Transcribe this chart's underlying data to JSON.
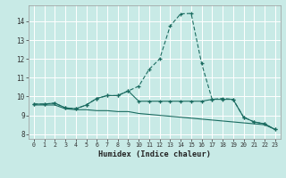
{
  "xlabel": "Humidex (Indice chaleur)",
  "bg_color": "#c8eae6",
  "line_color": "#1a6b60",
  "grid_color": "#b0d8d2",
  "xlim": [
    -0.5,
    23.5
  ],
  "ylim": [
    7.75,
    14.85
  ],
  "xticks": [
    0,
    1,
    2,
    3,
    4,
    5,
    6,
    7,
    8,
    9,
    10,
    11,
    12,
    13,
    14,
    15,
    16,
    17,
    18,
    19,
    20,
    21,
    22,
    23
  ],
  "yticks": [
    8,
    9,
    10,
    11,
    12,
    13,
    14
  ],
  "s1_x": [
    0,
    1,
    2,
    3,
    4,
    5,
    6,
    7,
    8,
    9,
    10,
    11,
    12,
    13,
    14,
    15,
    16,
    17,
    18,
    19,
    20,
    21,
    22,
    23
  ],
  "s1_y": [
    9.6,
    9.6,
    9.65,
    9.4,
    9.35,
    9.55,
    9.9,
    10.05,
    10.05,
    10.3,
    10.55,
    11.45,
    12.0,
    13.75,
    14.4,
    14.42,
    11.75,
    9.85,
    9.9,
    9.85,
    8.9,
    8.65,
    8.55,
    8.25
  ],
  "s2_x": [
    0,
    1,
    2,
    3,
    4,
    5,
    6,
    7,
    8,
    9,
    10,
    11,
    12,
    13,
    14,
    15,
    16,
    17,
    18,
    19,
    20,
    21,
    22,
    23
  ],
  "s2_y": [
    9.6,
    9.6,
    9.65,
    9.4,
    9.35,
    9.55,
    9.9,
    10.05,
    10.05,
    10.3,
    9.75,
    9.75,
    9.75,
    9.75,
    9.75,
    9.75,
    9.75,
    9.85,
    9.85,
    9.85,
    8.9,
    8.65,
    8.55,
    8.25
  ],
  "s3_x": [
    0,
    1,
    2,
    3,
    4,
    5,
    6,
    7,
    8,
    9,
    10,
    11,
    12,
    13,
    14,
    15,
    16,
    17,
    18,
    19,
    20,
    21,
    22,
    23
  ],
  "s3_y": [
    9.55,
    9.55,
    9.55,
    9.35,
    9.3,
    9.3,
    9.25,
    9.25,
    9.2,
    9.2,
    9.1,
    9.05,
    9.0,
    8.95,
    8.9,
    8.85,
    8.8,
    8.75,
    8.7,
    8.65,
    8.6,
    8.55,
    8.5,
    8.25
  ]
}
